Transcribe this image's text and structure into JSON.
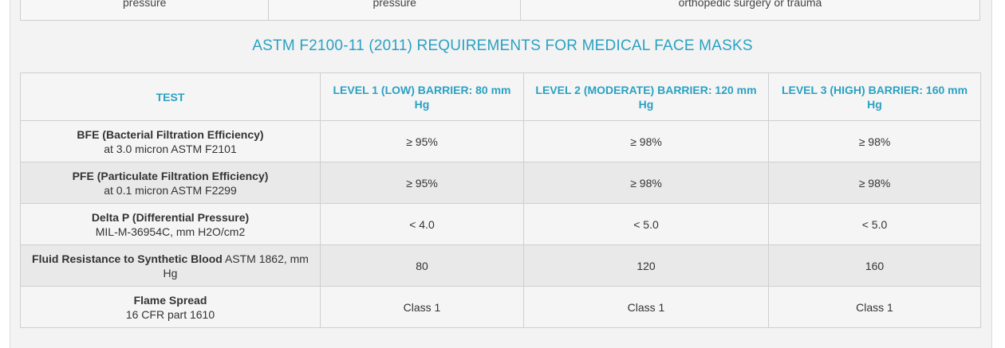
{
  "previous_row": {
    "cells": [
      "pressure",
      "pressure",
      "orthopedic surgery or trauma"
    ]
  },
  "title": "ASTM F2100-11 (2011) REQUIREMENTS FOR MEDICAL FACE MASKS",
  "colors": {
    "accent": "#2aa1c3",
    "border": "#cfcfcf",
    "row_alt": "#e9e9e9"
  },
  "table": {
    "headers": [
      "TEST",
      "LEVEL 1 (LOW) BARRIER: 80 mm Hg",
      "LEVEL 2 (MODERATE) BARRIER: 120 mm Hg",
      "LEVEL 3 (HIGH) BARRIER: 160 mm Hg"
    ],
    "rows": [
      {
        "test_bold": "BFE (Bacterial Filtration Efficiency)",
        "test_rest": "at 3.0 micron ASTM F2101",
        "l1": "≥ 95%",
        "l2": "≥ 98%",
        "l3": "≥ 98%"
      },
      {
        "test_bold": "PFE (Particulate Filtration Efficiency)",
        "test_rest": "at 0.1 micron ASTM F2299",
        "l1": "≥ 95%",
        "l2": "≥ 98%",
        "l3": "≥ 98%"
      },
      {
        "test_bold": "Delta P (Differential Pressure)",
        "test_rest": "MIL-M-36954C, mm H2O/cm2",
        "l1": "< 4.0",
        "l2": "< 5.0",
        "l3": "< 5.0"
      },
      {
        "test_bold": "Fluid Resistance to Synthetic Blood",
        "test_rest": " ASTM 1862, mm Hg",
        "l1": "80",
        "l2": "120",
        "l3": "160"
      },
      {
        "test_bold": "Flame Spread",
        "test_rest": "16 CFR part 1610",
        "l1": "Class 1",
        "l2": "Class 1",
        "l3": "Class 1"
      }
    ]
  }
}
